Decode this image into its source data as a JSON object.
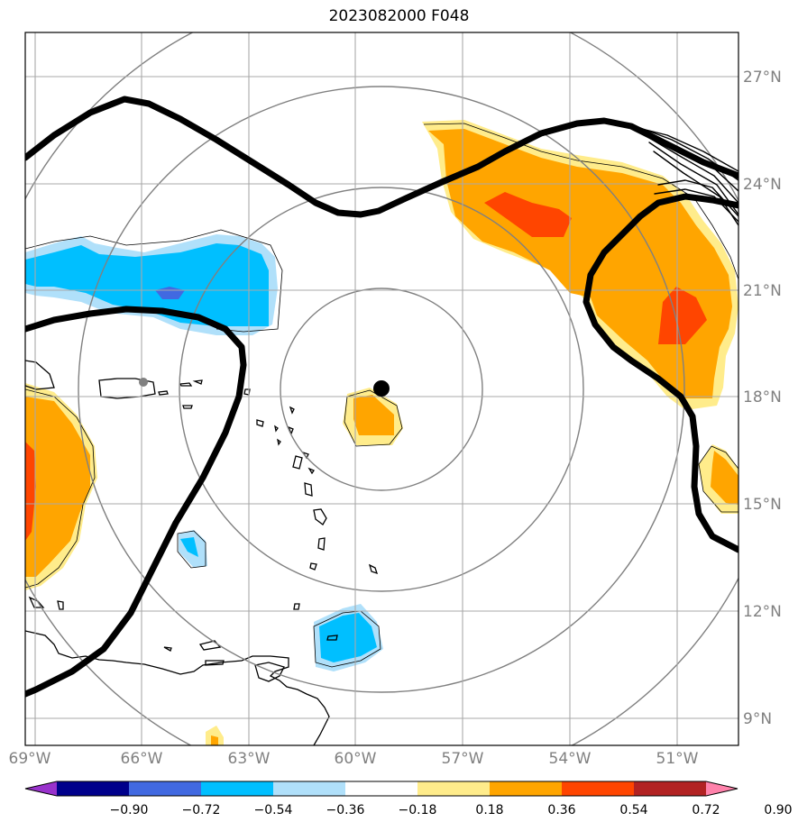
{
  "title": "2023082000 F048",
  "map": {
    "lon_ticks": [
      "69°W",
      "66°W",
      "63°W",
      "60°W",
      "57°W",
      "54°W",
      "51°W"
    ],
    "lat_ticks": [
      "27°N",
      "24°N",
      "21°N",
      "18°N",
      "15°N",
      "12°N",
      "9°N"
    ]
  },
  "colorbar": {
    "labels": [
      "−0.90",
      "−0.72",
      "−0.54",
      "−0.36",
      "−0.18",
      "0.18",
      "0.36",
      "0.54",
      "0.72",
      "0.90"
    ],
    "colors": [
      "#9932cc",
      "#00008b",
      "#4169e1",
      "#00bfff",
      "#b0e0fa",
      "#ffffff",
      "#ffec8b",
      "#ffa500",
      "#ff4500",
      "#b22222",
      "#ff82ab"
    ]
  },
  "markers": {
    "storm_center_color": "#000000",
    "reference_point_color": "#808080"
  }
}
